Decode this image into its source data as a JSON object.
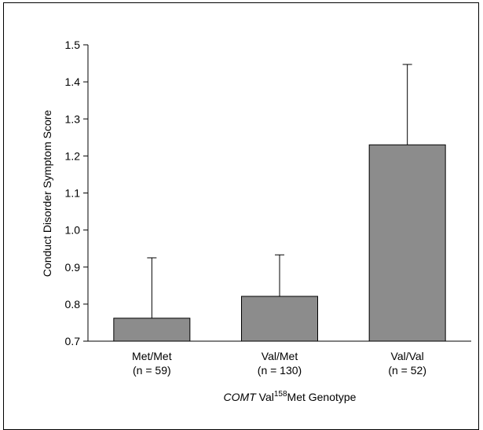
{
  "chart_data": {
    "type": "bar",
    "categories": [
      "Met/Met",
      "Val/Met",
      "Val/Val"
    ],
    "category_n_labels": [
      "(n = 59)",
      "(n = 130)",
      "(n = 52)"
    ],
    "values": [
      0.762,
      0.821,
      1.23
    ],
    "error_upper": [
      0.925,
      0.933,
      1.447
    ],
    "ylim": [
      0.7,
      1.5
    ],
    "yticks": [
      "0.7",
      "0.8",
      "0.9",
      "1.0",
      "1.1",
      "1.2",
      "1.3",
      "1.4",
      "1.5"
    ],
    "ylabel": "Conduct Disorder Symptom Score",
    "xlabel": {
      "italic": "COMT",
      "prefix": " Val",
      "superscript": "158",
      "suffix": "Met Genotype"
    },
    "title": "",
    "grid": false,
    "legend": "none",
    "bar_color": "#8c8c8c",
    "bar_edge_color": "#000000"
  }
}
